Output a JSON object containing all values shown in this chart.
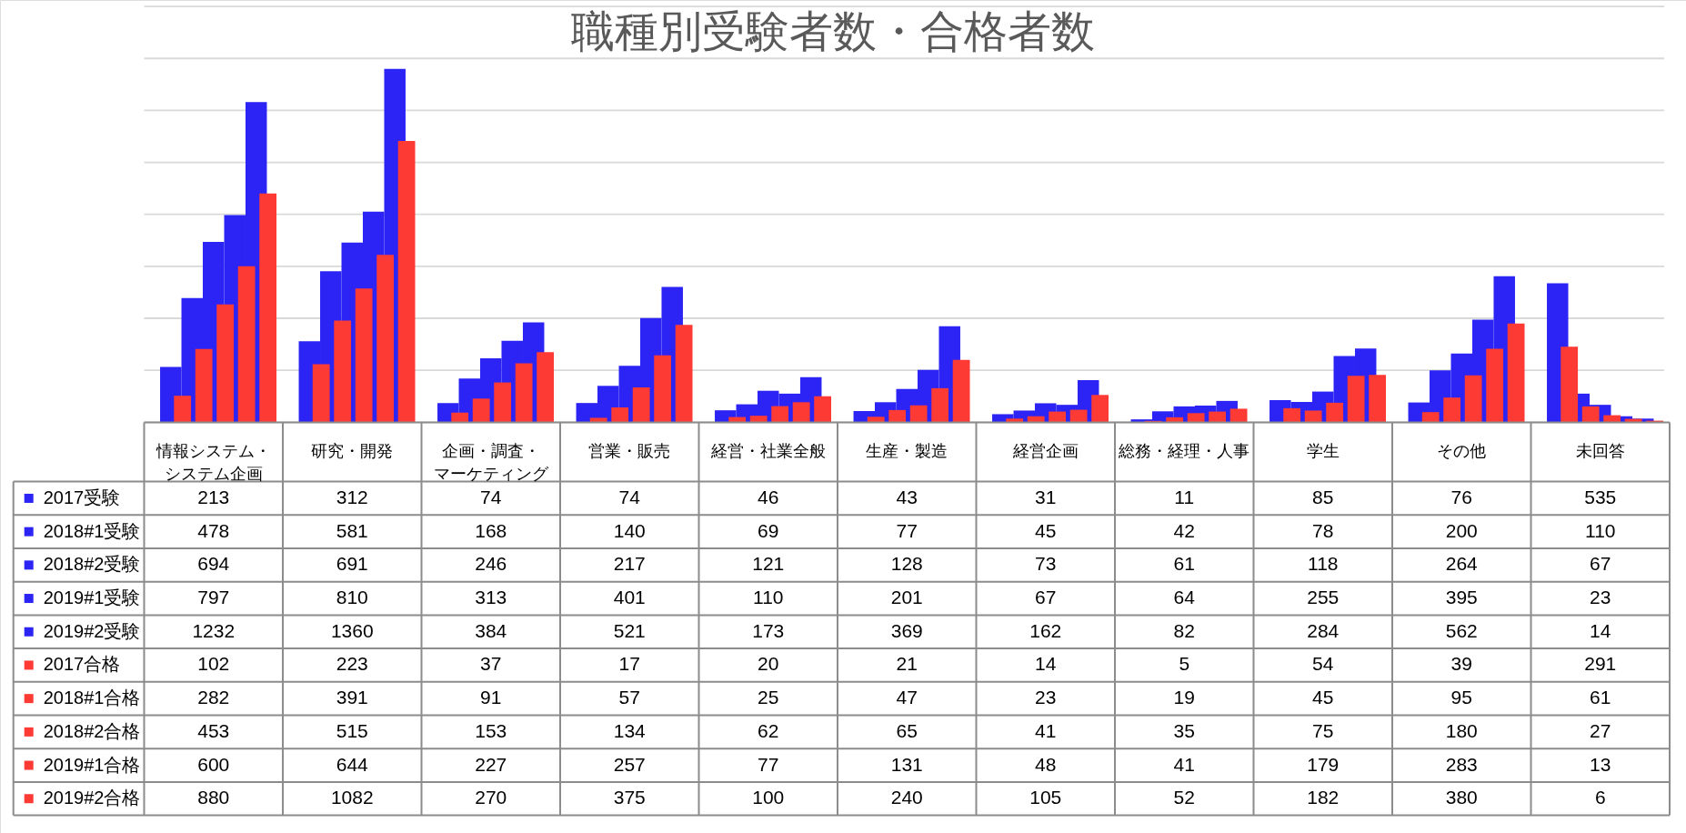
{
  "chart_data": {
    "type": "bar",
    "title": "職種別受験者数・合格者数",
    "categories": [
      "情報システム・システム企画",
      "研究・開発",
      "企画・調査・マーケティング",
      "営業・販売",
      "経営・社業全般",
      "生産・製造",
      "経営企画",
      "総務・経理・人事",
      "学生",
      "その他",
      "未回答"
    ],
    "series": [
      {
        "name": "2017受験",
        "color": "#2b24f5",
        "values": [
          213,
          312,
          74,
          74,
          46,
          43,
          31,
          11,
          85,
          76,
          535
        ]
      },
      {
        "name": "2018#1受験",
        "color": "#2b24f5",
        "values": [
          478,
          581,
          168,
          140,
          69,
          77,
          45,
          42,
          78,
          200,
          110
        ]
      },
      {
        "name": "2018#2受験",
        "color": "#2b24f5",
        "values": [
          694,
          691,
          246,
          217,
          121,
          128,
          73,
          61,
          118,
          264,
          67
        ]
      },
      {
        "name": "2019#1受験",
        "color": "#2b24f5",
        "values": [
          797,
          810,
          313,
          401,
          110,
          201,
          67,
          64,
          255,
          395,
          23
        ]
      },
      {
        "name": "2019#2受験",
        "color": "#2b24f5",
        "values": [
          1232,
          1360,
          384,
          521,
          173,
          369,
          162,
          82,
          284,
          562,
          14
        ]
      },
      {
        "name": "2017合格",
        "color": "#fe3a34",
        "values": [
          102,
          223,
          37,
          17,
          20,
          21,
          14,
          5,
          54,
          39,
          291
        ]
      },
      {
        "name": "2018#1合格",
        "color": "#fe3a34",
        "values": [
          282,
          391,
          91,
          57,
          25,
          47,
          23,
          19,
          45,
          95,
          61
        ]
      },
      {
        "name": "2018#2合格",
        "color": "#fe3a34",
        "values": [
          453,
          515,
          153,
          134,
          62,
          65,
          41,
          35,
          75,
          180,
          27
        ]
      },
      {
        "name": "2019#1合格",
        "color": "#fe3a34",
        "values": [
          600,
          644,
          227,
          257,
          77,
          131,
          48,
          41,
          179,
          283,
          13
        ]
      },
      {
        "name": "2019#2合格",
        "color": "#fe3a34",
        "values": [
          880,
          1082,
          270,
          375,
          100,
          240,
          105,
          52,
          182,
          380,
          6
        ]
      }
    ],
    "ylim": [
      0,
      1600
    ],
    "yticks": [
      {
        "value": 0,
        "label": null
      },
      {
        "value": 200,
        "label": null
      },
      {
        "value": 400,
        "label": null
      },
      {
        "value": 600,
        "label": null
      },
      {
        "value": 800,
        "label": null
      },
      {
        "value": 1000,
        "label": null
      },
      {
        "value": 1200,
        "label": null
      },
      {
        "value": 1400,
        "label": null
      },
      {
        "value": 1600,
        "label": null
      }
    ],
    "tick_labels": "x",
    "grid": "y",
    "legend": "bottom left",
    "data_labels": true
  }
}
